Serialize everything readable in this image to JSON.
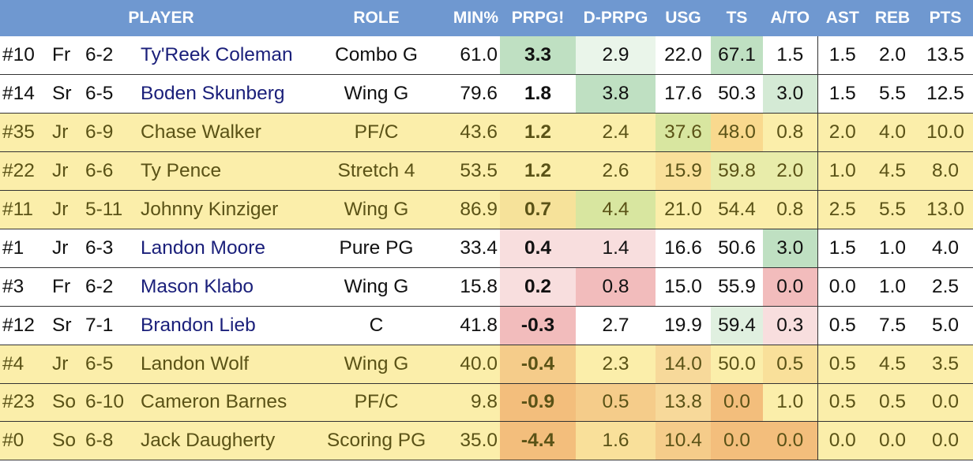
{
  "columns": {
    "player": "PLAYER",
    "role": "ROLE",
    "min": "MIN%",
    "prpg": "PRPG!",
    "dprpg": "D-PRPG",
    "usg": "USG",
    "ts": "TS",
    "ato": "A/TO",
    "ast": "AST",
    "reb": "REB",
    "pts": "PTS"
  },
  "rows": [
    {
      "num": "#10",
      "cls": "Fr",
      "ht": "6-2",
      "name": "Ty'Reek Coleman",
      "role": "Combo G",
      "min": "61.0",
      "prpg": "3.3",
      "dprpg": "2.9",
      "usg": "22.0",
      "ts": "67.1",
      "ato": "1.5",
      "ast": "1.5",
      "reb": "2.0",
      "pts": "13.5",
      "active": true,
      "colors": {
        "prpg": "#bfe0c2",
        "dprpg": "#eaf5ea",
        "usg": "#ffffff",
        "ts": "#bfe0c2",
        "ato": "#ffffff"
      }
    },
    {
      "num": "#14",
      "cls": "Sr",
      "ht": "6-5",
      "name": "Boden Skunberg",
      "role": "Wing G",
      "min": "79.6",
      "prpg": "1.8",
      "dprpg": "3.8",
      "usg": "17.6",
      "ts": "50.3",
      "ato": "3.0",
      "ast": "1.5",
      "reb": "5.5",
      "pts": "12.5",
      "active": true,
      "colors": {
        "prpg": "#ffffff",
        "dprpg": "#bfe0c2",
        "usg": "#ffffff",
        "ts": "#ffffff",
        "ato": "#d4ead5"
      }
    },
    {
      "num": "#35",
      "cls": "Jr",
      "ht": "6-9",
      "name": "Chase Walker",
      "role": "PF/C",
      "min": "43.6",
      "prpg": "1.2",
      "dprpg": "2.4",
      "usg": "37.6",
      "ts": "48.0",
      "ato": "0.8",
      "ast": "2.0",
      "reb": "4.0",
      "pts": "10.0",
      "active": false,
      "colors": {
        "prpg": "#fbeeaa",
        "dprpg": "#fbeeaa",
        "usg": "#d8e6a0",
        "ts": "#f9d98e",
        "ato": "#fbeeaa"
      }
    },
    {
      "num": "#22",
      "cls": "Jr",
      "ht": "6-6",
      "name": "Ty Pence",
      "role": "Stretch 4",
      "min": "53.5",
      "prpg": "1.2",
      "dprpg": "2.6",
      "usg": "15.9",
      "ts": "59.8",
      "ato": "2.0",
      "ast": "1.0",
      "reb": "4.5",
      "pts": "8.0",
      "active": false,
      "colors": {
        "prpg": "#fbeeaa",
        "dprpg": "#fbeeaa",
        "usg": "#f9e09a",
        "ts": "#e8ecaa",
        "ato": "#e8ecaa"
      }
    },
    {
      "num": "#11",
      "cls": "Jr",
      "ht": "5-11",
      "name": "Johnny Kinziger",
      "role": "Wing G",
      "min": "86.9",
      "prpg": "0.7",
      "dprpg": "4.4",
      "usg": "21.0",
      "ts": "54.4",
      "ato": "0.8",
      "ast": "2.5",
      "reb": "5.5",
      "pts": "13.0",
      "active": false,
      "colors": {
        "prpg": "#f6e29a",
        "dprpg": "#d8e6a0",
        "usg": "#fbeeaa",
        "ts": "#fbeeaa",
        "ato": "#fbeeaa"
      }
    },
    {
      "num": "#1",
      "cls": "Jr",
      "ht": "6-3",
      "name": "Landon Moore",
      "role": "Pure PG",
      "min": "33.4",
      "prpg": "0.4",
      "dprpg": "1.4",
      "usg": "16.6",
      "ts": "50.6",
      "ato": "3.0",
      "ast": "1.5",
      "reb": "1.0",
      "pts": "4.0",
      "active": true,
      "colors": {
        "prpg": "#f8dede",
        "dprpg": "#f8dede",
        "usg": "#ffffff",
        "ts": "#ffffff",
        "ato": "#bfe0c2"
      }
    },
    {
      "num": "#3",
      "cls": "Fr",
      "ht": "6-2",
      "name": "Mason Klabo",
      "role": "Wing G",
      "min": "15.8",
      "prpg": "0.2",
      "dprpg": "0.8",
      "usg": "15.0",
      "ts": "55.9",
      "ato": "0.0",
      "ast": "0.0",
      "reb": "1.0",
      "pts": "2.5",
      "active": true,
      "colors": {
        "prpg": "#f8dede",
        "dprpg": "#f2bcbc",
        "usg": "#ffffff",
        "ts": "#ffffff",
        "ato": "#f2bcbc"
      }
    },
    {
      "num": "#12",
      "cls": "Sr",
      "ht": "7-1",
      "name": "Brandon Lieb",
      "role": "C",
      "min": "41.8",
      "prpg": "-0.3",
      "dprpg": "2.7",
      "usg": "19.9",
      "ts": "59.4",
      "ato": "0.3",
      "ast": "0.5",
      "reb": "7.5",
      "pts": "5.0",
      "active": true,
      "colors": {
        "prpg": "#f2bcbc",
        "dprpg": "#ffffff",
        "usg": "#ffffff",
        "ts": "#e0f0e0",
        "ato": "#f8dede"
      }
    },
    {
      "num": "#4",
      "cls": "Jr",
      "ht": "6-5",
      "name": "Landon Wolf",
      "role": "Wing G",
      "min": "40.0",
      "prpg": "-0.4",
      "dprpg": "2.3",
      "usg": "14.0",
      "ts": "50.0",
      "ato": "0.5",
      "ast": "0.5",
      "reb": "4.5",
      "pts": "3.5",
      "active": false,
      "colors": {
        "prpg": "#f5cc8a",
        "dprpg": "#fbeeaa",
        "usg": "#f7d99a",
        "ts": "#fbeeaa",
        "ato": "#f9e09a"
      }
    },
    {
      "num": "#23",
      "cls": "So",
      "ht": "6-10",
      "name": "Cameron Barnes",
      "role": "PF/C",
      "min": "9.8",
      "prpg": "-0.9",
      "dprpg": "0.5",
      "usg": "13.8",
      "ts": "0.0",
      "ato": "1.0",
      "ast": "0.5",
      "reb": "0.5",
      "pts": "0.0",
      "active": false,
      "colors": {
        "prpg": "#f3be7c",
        "dprpg": "#f5cc8a",
        "usg": "#f7d99a",
        "ts": "#f3be7c",
        "ato": "#fbeeaa"
      }
    },
    {
      "num": "#0",
      "cls": "So",
      "ht": "6-8",
      "name": "Jack Daugherty",
      "role": "Scoring PG",
      "min": "35.0",
      "prpg": "-4.4",
      "dprpg": "1.6",
      "usg": "10.4",
      "ts": "0.0",
      "ato": "0.0",
      "ast": "0.0",
      "reb": "0.0",
      "pts": "0.0",
      "active": false,
      "colors": {
        "prpg": "#f3be7c",
        "dprpg": "#f9e09a",
        "usg": "#f5cc8a",
        "ts": "#f3be7c",
        "ato": "#f3be7c"
      }
    }
  ]
}
